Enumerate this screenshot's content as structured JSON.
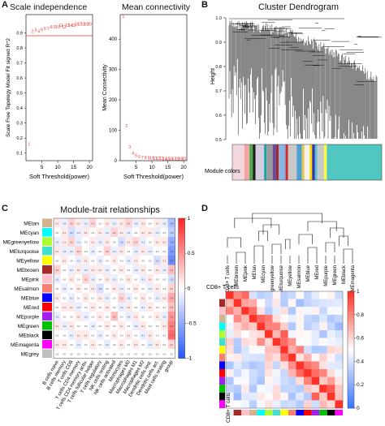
{
  "panels": {
    "a": {
      "letter": "A",
      "left": {
        "title": "Scale independence",
        "xlabel": "Soft Threshold(power)",
        "ylabel": "Scale Free Topology Model Fit signed R^2",
        "h_line_label": "",
        "xticks": [
          "5",
          "10",
          "15",
          "20"
        ],
        "yticks": [
          "0.1",
          "0.2",
          "0.3",
          "0.4",
          "0.5",
          "0.6",
          "0.7",
          "0.8",
          "0.9"
        ]
      },
      "right": {
        "title": "Mean connectivity",
        "xlabel": "Soft Threshold(power)",
        "ylabel": "Mean Connectivity",
        "xticks": [
          "5",
          "10",
          "15",
          "20"
        ],
        "yticks": [
          "0",
          "100",
          "200",
          "300",
          "400"
        ]
      }
    },
    "b": {
      "letter": "B",
      "title": "Cluster Dendrogram",
      "ylabel": "Height",
      "yticks": [
        "0.5",
        "0.6",
        "0.7",
        "0.8",
        "0.9",
        "1.0"
      ],
      "color_bar_label": "Module colors",
      "module_color_segments": [
        "#f2d8de",
        "#f5a3a3",
        "#4aa84a",
        "#1b1b1b",
        "#d8cce0",
        "#1aa6a6",
        "#9b9b9b",
        "#6a4b9a",
        "#a52a2a",
        "#8ab4e2",
        "#cc2c2c",
        "#c8c8c8",
        "#4d9fd6",
        "#e8c84a",
        "#f2f2f2",
        "#ffd700",
        "#2f2fb0",
        "#5bc0d6",
        "#c8c8c8",
        "#ffff33",
        "#50c8c0"
      ]
    },
    "c": {
      "letter": "C",
      "title": "Module-trait relationships",
      "legend_ticks": [
        "1",
        "0.5",
        "0",
        "-0.5",
        "-1"
      ],
      "modules": [
        "MEtan",
        "MEcyan",
        "MEgreenyellow",
        "MEturquoise",
        "MEyellow",
        "MEbrown",
        "MEpink",
        "MEsalmon",
        "MEblue",
        "MEred",
        "MEpurple",
        "MEgreen",
        "MEblack",
        "MEmagenta",
        "MEgrey"
      ],
      "module_colors": [
        "#d2b48c",
        "#00ffff",
        "#adff2f",
        "#40e0d0",
        "#ffff00",
        "#a52a2a",
        "#ffc0cb",
        "#fa8072",
        "#0000ff",
        "#ff0000",
        "#a020f0",
        "#00c000",
        "#000000",
        "#ff00ff",
        "#bebebe"
      ],
      "traits": [
        "B cells naive",
        "B cells memory",
        "T cells CD8",
        "T cells CD4 memory resting",
        "T cells CD4 memory activated",
        "T cells follicular helper",
        "T cells regulatory (Tregs)",
        "NK cells resting",
        "NK cells activated",
        "Monocytes",
        "Macrophages M0",
        "Macrophages M1",
        "Macrophages M2",
        "Dendritic cells resting",
        "Dendritic cells activated",
        "Mast cells resting",
        "group"
      ],
      "trait_labels_short": [
        "B cells naive",
        "B cells memory",
        "T cells CD8",
        "T cells CD4 memory",
        "T cells CD4 memory activ.",
        "T cells follicular helper",
        "T cells regulatory",
        "NK cells resting",
        "NK cells activated",
        "Monocytes",
        "Macrophages M0",
        "Macrophages M1",
        "Macrophages M2",
        "Dendritic cells rest.",
        "Dendritic cells act.",
        "Mast cells resting",
        "group"
      ],
      "correlations": [
        [
          0.1,
          -0.1,
          0.2,
          0.1,
          -0.1,
          0.2,
          0.0,
          0.1,
          -0.1,
          0.1,
          0.2,
          -0.1,
          0.1,
          0.0,
          0.1,
          -0.1,
          -0.4
        ],
        [
          0.0,
          0.1,
          -0.2,
          -0.1,
          0.1,
          0.0,
          0.1,
          -0.1,
          0.2,
          0.1,
          -0.1,
          0.0,
          0.1,
          0.1,
          -0.1,
          0.0,
          -0.3
        ],
        [
          -0.1,
          0.1,
          0.2,
          -0.1,
          0.0,
          0.1,
          -0.1,
          0.1,
          0.0,
          -0.2,
          0.1,
          0.2,
          -0.1,
          0.0,
          0.1,
          0.1,
          -0.5
        ],
        [
          0.1,
          -0.1,
          -0.1,
          0.2,
          0.0,
          -0.1,
          0.0,
          0.2,
          -0.1,
          0.1,
          0.0,
          -0.1,
          0.1,
          -0.1,
          0.0,
          0.0,
          -0.6
        ],
        [
          0.0,
          0.1,
          0.0,
          -0.1,
          0.1,
          0.0,
          -0.1,
          0.0,
          0.1,
          0.0,
          -0.1,
          0.1,
          0.0,
          0.0,
          -0.2,
          0.1,
          -0.7
        ],
        [
          0.2,
          0.0,
          -0.1,
          0.1,
          -0.1,
          0.1,
          0.1,
          -0.1,
          0.0,
          0.1,
          0.0,
          -0.1,
          0.1,
          0.0,
          0.1,
          -0.1,
          0.3
        ],
        [
          -0.1,
          0.0,
          0.1,
          0.0,
          0.2,
          -0.1,
          0.0,
          0.1,
          -0.1,
          0.0,
          0.1,
          0.0,
          -0.1,
          0.1,
          0.0,
          0.0,
          -0.2
        ],
        [
          0.0,
          -0.1,
          0.0,
          0.1,
          0.0,
          0.1,
          -0.2,
          0.0,
          0.1,
          -0.1,
          0.0,
          0.1,
          0.0,
          -0.1,
          0.1,
          0.0,
          0.2
        ],
        [
          0.1,
          0.0,
          -0.1,
          0.0,
          0.1,
          0.0,
          0.1,
          -0.1,
          0.0,
          0.2,
          -0.1,
          0.0,
          0.1,
          0.0,
          -0.1,
          0.1,
          0.4
        ],
        [
          0.0,
          0.1,
          0.1,
          -0.1,
          0.0,
          0.1,
          0.0,
          0.1,
          0.0,
          -0.1,
          0.1,
          0.0,
          -0.1,
          0.1,
          0.0,
          0.0,
          0.3
        ],
        [
          -0.1,
          0.0,
          0.0,
          0.1,
          -0.1,
          0.0,
          0.1,
          0.0,
          0.3,
          0.0,
          -0.1,
          0.1,
          0.0,
          0.0,
          0.1,
          -0.1,
          0.5
        ],
        [
          0.1,
          -0.1,
          0.1,
          0.0,
          0.0,
          -0.1,
          0.0,
          0.1,
          0.0,
          0.1,
          0.0,
          -0.1,
          0.1,
          0.0,
          0.0,
          0.1,
          0.6
        ],
        [
          0.0,
          0.0,
          -0.1,
          0.1,
          0.1,
          0.0,
          -0.1,
          0.0,
          0.1,
          0.0,
          0.1,
          0.0,
          -0.1,
          0.1,
          0.0,
          0.0,
          0.7
        ],
        [
          0.1,
          0.1,
          0.0,
          -0.1,
          0.0,
          0.1,
          0.0,
          -0.1,
          0.0,
          0.1,
          0.0,
          0.1,
          0.0,
          -0.1,
          0.1,
          0.0,
          0.2
        ],
        [
          0.0,
          0.0,
          0.0,
          0.0,
          0.0,
          0.0,
          0.0,
          0.0,
          0.0,
          0.0,
          0.0,
          0.0,
          0.0,
          0.0,
          0.0,
          0.0,
          0.0
        ]
      ]
    },
    "d": {
      "letter": "D",
      "dendro_labels": [
        "CD8+ T cells",
        "MEbrown",
        "MEpink",
        "MEtan",
        "MEcyan",
        "MEgreenyellow",
        "MEturquoise",
        "MEyellow",
        "MEsalmon",
        "MEblue",
        "MEred",
        "MEpurple",
        "MEgreen",
        "MEblack",
        "MEmagenta"
      ],
      "heatmap_row_label": "CD8+ T cells",
      "heatmap_col_label": "CD8+ T cells",
      "legend_ticks": [
        "1",
        "0.8",
        "0.6",
        "0.4",
        "0.2",
        "0"
      ],
      "color_strip": [
        "#f7f7f7",
        "#a52a2a",
        "#ffc0cb",
        "#d2b48c",
        "#00ffff",
        "#adff2f",
        "#40e0d0",
        "#ffff00",
        "#fa8072",
        "#0000ff",
        "#ff0000",
        "#a020f0",
        "#00c000",
        "#000000",
        "#ff00ff"
      ]
    }
  }
}
